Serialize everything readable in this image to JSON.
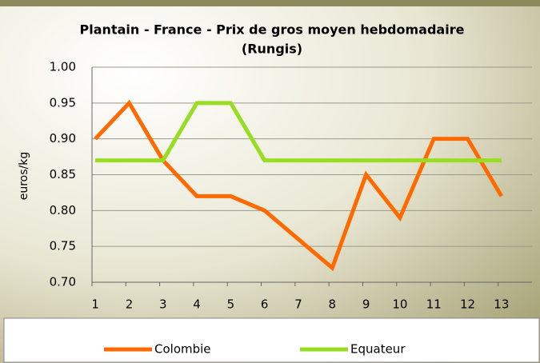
{
  "chart_data": {
    "type": "line",
    "title": "Plantain - France - Prix de gros moyen hebdomadaire",
    "subtitle": "(Rungis)",
    "y_label": "euros/kg",
    "categories": [
      "1",
      "2",
      "3",
      "4",
      "5",
      "6",
      "7",
      "8",
      "9",
      "10",
      "11",
      "12",
      "13"
    ],
    "series": [
      {
        "name": "Colombie",
        "color": "#ff6a00",
        "values": [
          0.9,
          0.95,
          0.87,
          0.82,
          0.82,
          0.8,
          0.76,
          0.72,
          0.85,
          0.79,
          0.9,
          0.9,
          0.82
        ]
      },
      {
        "name": "Equateur",
        "color": "#99dd22",
        "values": [
          0.87,
          0.87,
          0.87,
          0.95,
          0.95,
          0.87,
          0.87,
          0.87,
          0.87,
          0.87,
          0.87,
          0.87,
          0.87
        ]
      }
    ],
    "ylim": [
      0.7,
      1.0
    ],
    "yticks": [
      {
        "value": 0.7,
        "label": "0.70"
      },
      0.75,
      {
        "value": 0.8,
        "label": "0.80"
      },
      0.85,
      {
        "value": 0.9,
        "label": "0.90"
      },
      0.95,
      {
        "value": 1.0,
        "label": "1.00"
      }
    ],
    "grid": true,
    "legend": "bottom"
  }
}
